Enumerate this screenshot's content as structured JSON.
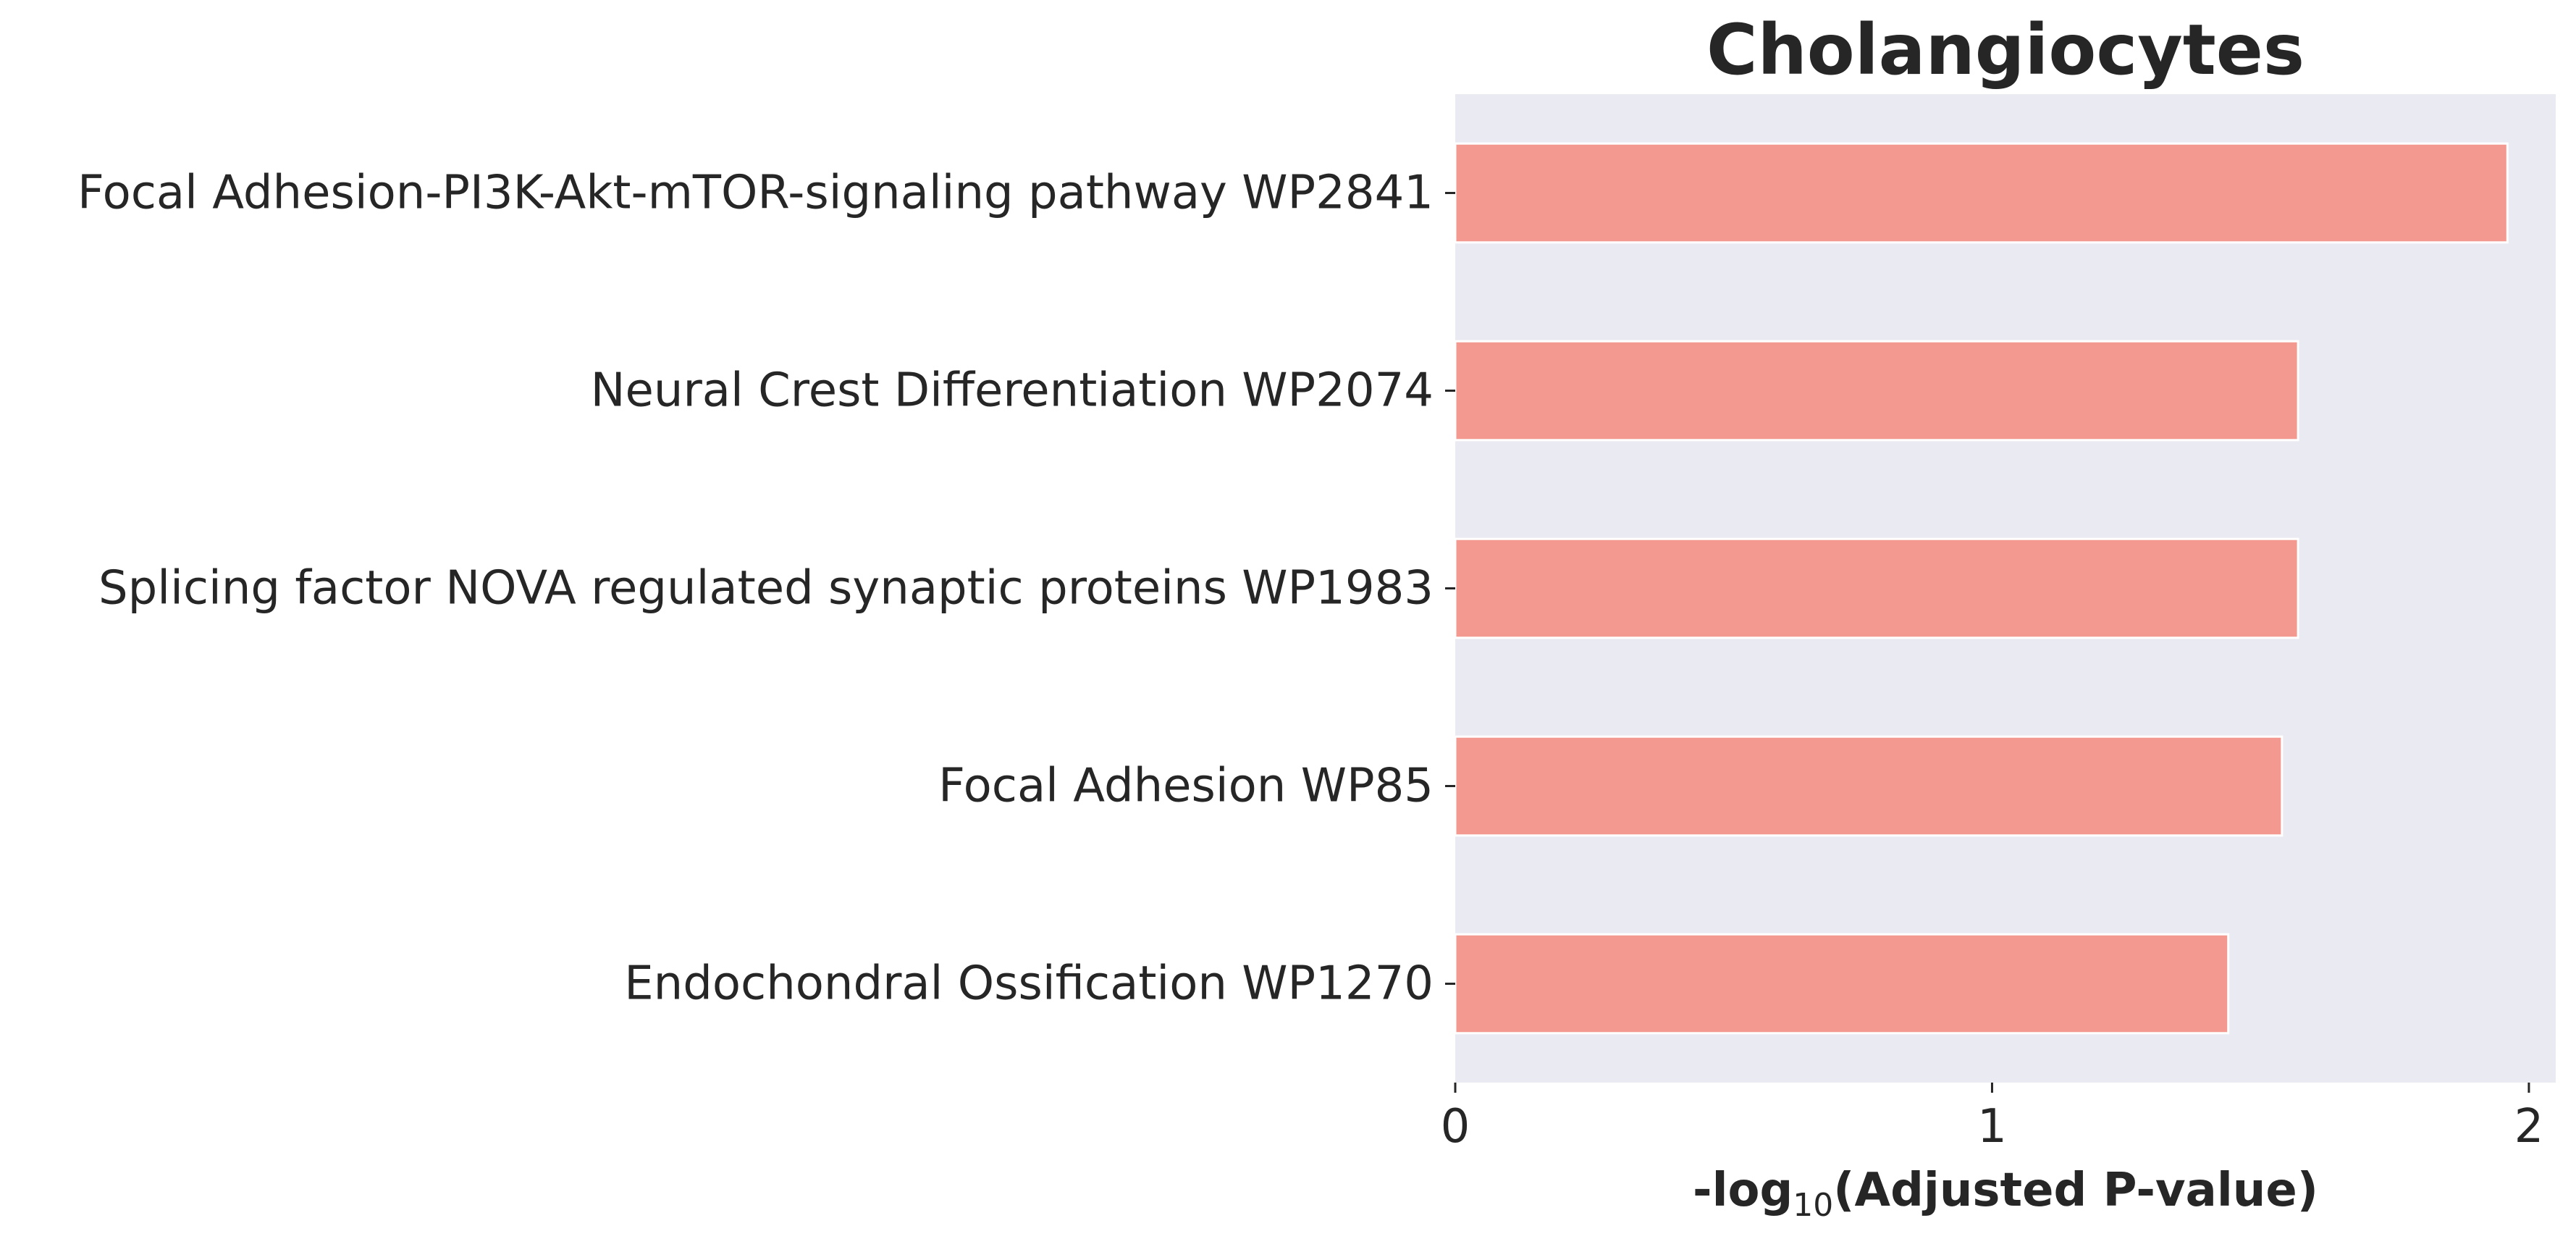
{
  "chart_data": {
    "type": "bar",
    "orientation": "horizontal",
    "title": "Cholangiocytes",
    "xlabel": {
      "prefix": "-log",
      "subscript": "10",
      "suffix": "(Adjusted P-value)"
    },
    "ylabel": "",
    "categories": [
      "Focal Adhesion-PI3K-Akt-mTOR-signaling pathway WP2841",
      "Neural Crest Differentiation WP2074",
      "Splicing factor NOVA regulated synaptic proteins WP1983",
      "Focal Adhesion WP85",
      "Endochondral Ossification WP1270"
    ],
    "values": [
      1.96,
      1.57,
      1.57,
      1.54,
      1.44
    ],
    "xlim": [
      0,
      2.05
    ],
    "xticks": [
      0,
      1,
      2
    ],
    "grid": false,
    "legend": "none",
    "colors": {
      "bar": "#f4998f",
      "bar_edge": "#ffffff",
      "plot_background": "#eaeaf2",
      "text": "#262626"
    }
  }
}
